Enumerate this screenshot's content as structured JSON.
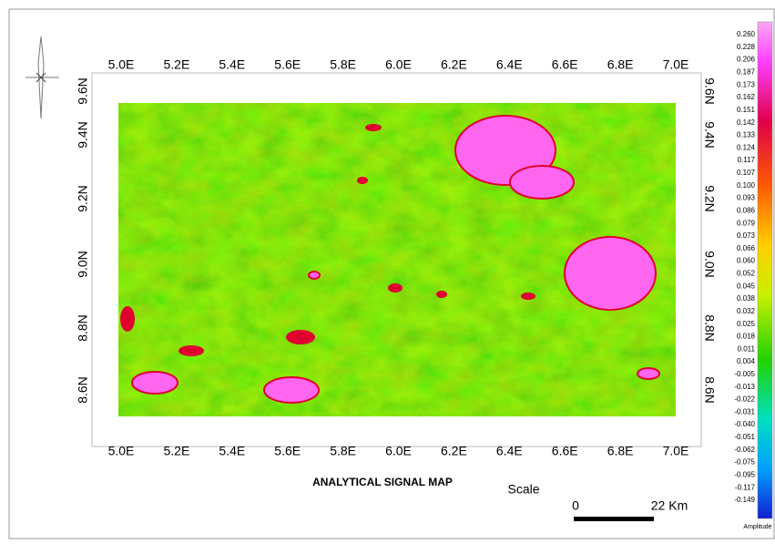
{
  "map": {
    "title": "ANALYTICAL SIGNAL MAP",
    "top_labels": [
      "5.0E",
      "5.2E",
      "5.4E",
      "5.6E",
      "5.8E",
      "6.0E",
      "6.2E",
      "6.4E",
      "6.6E",
      "6.8E",
      "7.0E"
    ],
    "bottom_labels": [
      "5.0E",
      "5.2E",
      "5.4E",
      "5.6E",
      "5.8E",
      "6.0E",
      "6.2E",
      "6.4E",
      "6.6E",
      "6.8E",
      "7.0E"
    ],
    "left_labels": [
      "9.6N",
      "9.4N",
      "9.2N",
      "9.0N",
      "8.8N",
      "8.6N"
    ],
    "right_labels": [
      "9.6N",
      "9.4N",
      "9.2N",
      "9.0N",
      "8.8N",
      "8.6N"
    ],
    "legend": {
      "labels": [
        "0.260",
        "0.228",
        "0.206",
        "0.187",
        "0.173",
        "0.162",
        "0.151",
        "0.142",
        "0.133",
        "0.124",
        "0.117",
        "0.107",
        "0.100",
        "0.093",
        "0.086",
        "0.079",
        "0.073",
        "0.066",
        "0.060",
        "0.052",
        "0.045",
        "0.038",
        "0.032",
        "0.025",
        "0.018",
        "0.011",
        "0.004",
        "-0.005",
        "-0.013",
        "-0.022",
        "-0.031",
        "-0.040",
        "-0.051",
        "-0.062",
        "-0.075",
        "-0.095",
        "-0.117",
        "-0.149"
      ],
      "title": "Amplitude"
    },
    "scale": {
      "label": "Scale",
      "start": "0",
      "end": "22 Km"
    }
  }
}
